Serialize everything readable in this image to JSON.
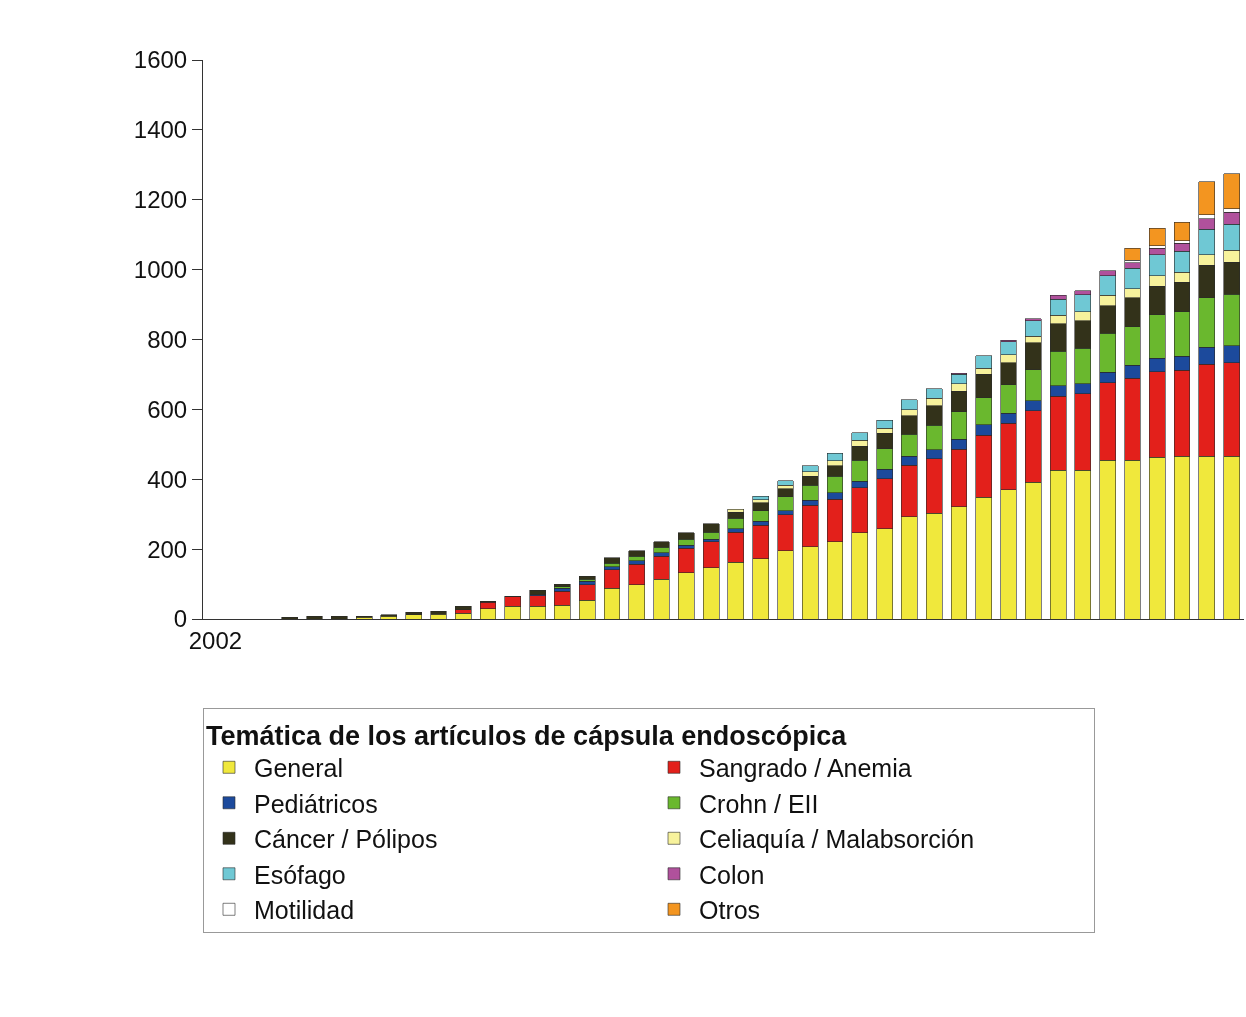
{
  "chart_data": {
    "type": "bar",
    "stacked": true,
    "legend_title": "Temática de los artículos de cápsula endoscópica",
    "legend": "bottom",
    "grid": false,
    "categories": [
      "2002",
      null,
      null,
      null,
      null,
      null,
      null,
      null,
      null,
      null,
      null,
      null,
      null,
      null,
      null,
      null,
      null,
      null,
      null,
      null,
      null,
      null,
      null,
      null,
      null,
      null,
      null,
      null,
      null,
      null,
      null,
      null,
      null,
      null,
      null,
      null,
      null,
      null,
      null,
      null,
      null,
      null
    ],
    "ylim": [
      0,
      1600
    ],
    "yticks": [
      0,
      200,
      400,
      600,
      800,
      1000,
      1200,
      1400,
      1600
    ],
    "series": [
      {
        "name": "General",
        "color": "#f0e83c",
        "values": [
          null,
          null,
          null,
          null,
          null,
          null,
          5,
          8,
          12,
          13,
          17,
          29,
          37,
          37,
          40,
          54,
          88,
          98,
          114,
          133,
          147,
          163,
          173,
          195,
          207,
          221,
          247,
          258,
          293,
          303,
          322,
          348,
          370,
          392,
          426,
          426,
          455,
          455,
          463,
          466,
          466,
          466
        ]
      },
      {
        "name": "Sangrado / Anemia",
        "color": "#e3201b",
        "values": [
          null,
          null,
          null,
          null,
          null,
          null,
          null,
          null,
          null,
          null,
          10,
          19,
          26,
          29,
          40,
          44,
          53,
          59,
          66,
          69,
          74,
          85,
          96,
          104,
          118,
          122,
          129,
          144,
          147,
          155,
          164,
          178,
          190,
          204,
          211,
          219,
          221,
          234,
          244,
          246,
          263,
          268
        ]
      },
      {
        "name": "Pediátricos",
        "color": "#1c4a9c",
        "values": [
          null,
          null,
          null,
          null,
          null,
          null,
          null,
          null,
          null,
          null,
          null,
          null,
          null,
          4,
          8,
          10,
          8,
          10,
          9,
          9,
          7,
          11,
          11,
          11,
          15,
          18,
          19,
          27,
          26,
          27,
          29,
          30,
          29,
          29,
          30,
          29,
          30,
          37,
          39,
          40,
          49,
          48
        ]
      },
      {
        "name": "Crohn / EII",
        "color": "#6ab82e",
        "values": [
          null,
          null,
          null,
          null,
          null,
          null,
          null,
          null,
          null,
          null,
          null,
          null,
          null,
          null,
          4,
          6,
          10,
          13,
          17,
          17,
          21,
          29,
          30,
          40,
          43,
          48,
          59,
          58,
          63,
          70,
          78,
          77,
          82,
          89,
          100,
          101,
          112,
          111,
          125,
          127,
          141,
          148
        ]
      },
      {
        "name": "Cáncer / Pólipos",
        "color": "#33321a",
        "values": [
          null,
          null,
          null,
          5,
          8,
          8,
          3,
          4,
          7,
          9,
          10,
          3,
          2,
          12,
          8,
          8,
          16,
          15,
          15,
          19,
          24,
          17,
          23,
          23,
          26,
          29,
          41,
          44,
          53,
          56,
          59,
          67,
          63,
          76,
          78,
          78,
          79,
          82,
          82,
          85,
          93,
          91
        ]
      },
      {
        "name": "Celiaquía / Malabsorción",
        "color": "#f7f29c",
        "values": [
          null,
          null,
          null,
          null,
          null,
          null,
          null,
          null,
          null,
          null,
          null,
          null,
          null,
          null,
          null,
          null,
          null,
          null,
          null,
          null,
          null,
          9,
          8,
          10,
          12,
          15,
          17,
          15,
          17,
          21,
          22,
          18,
          22,
          20,
          25,
          26,
          29,
          26,
          30,
          29,
          31,
          34
        ]
      },
      {
        "name": "Esófago",
        "color": "#6fc8d4",
        "values": [
          null,
          null,
          null,
          null,
          null,
          null,
          null,
          null,
          null,
          null,
          null,
          null,
          null,
          null,
          null,
          null,
          null,
          null,
          null,
          null,
          null,
          null,
          10,
          13,
          18,
          21,
          21,
          23,
          28,
          27,
          26,
          35,
          38,
          43,
          45,
          49,
          57,
          59,
          60,
          59,
          72,
          75
        ]
      },
      {
        "name": "Colon",
        "color": "#b0519c",
        "values": [
          null,
          null,
          null,
          null,
          null,
          null,
          null,
          null,
          null,
          null,
          null,
          null,
          null,
          null,
          null,
          null,
          null,
          null,
          null,
          null,
          null,
          null,
          null,
          null,
          null,
          null,
          null,
          null,
          null,
          null,
          4,
          null,
          4,
          7,
          11,
          11,
          14,
          16,
          18,
          23,
          30,
          34
        ]
      },
      {
        "name": "Motilidad",
        "color": "#ffffff",
        "values": [
          null,
          null,
          null,
          null,
          null,
          null,
          null,
          null,
          null,
          null,
          null,
          null,
          null,
          null,
          null,
          null,
          null,
          null,
          null,
          null,
          null,
          null,
          null,
          null,
          null,
          null,
          null,
          null,
          null,
          null,
          null,
          null,
          null,
          null,
          null,
          null,
          null,
          7,
          8,
          7,
          12,
          10
        ]
      },
      {
        "name": "Otros",
        "color": "#f39520",
        "values": [
          null,
          null,
          null,
          null,
          null,
          null,
          null,
          null,
          null,
          null,
          null,
          null,
          null,
          null,
          null,
          null,
          null,
          null,
          null,
          null,
          null,
          null,
          null,
          null,
          null,
          null,
          null,
          null,
          null,
          null,
          null,
          null,
          null,
          null,
          null,
          null,
          null,
          34,
          50,
          54,
          94,
          101
        ]
      }
    ]
  }
}
